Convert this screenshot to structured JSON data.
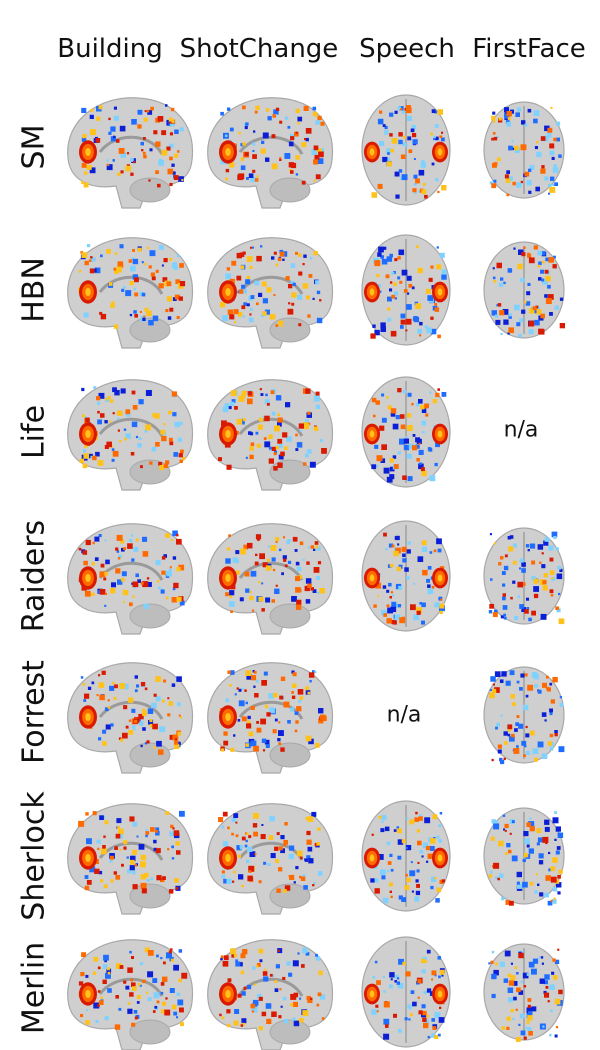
{
  "columns": [
    "Building",
    "ShotChange",
    "Speech",
    "FirstFace"
  ],
  "rows": [
    "SM",
    "HBN",
    "Life",
    "Raiders",
    "Forrest",
    "Sherlock",
    "Merlin"
  ],
  "na_text": "n/a",
  "cells": [
    [
      "map",
      "map",
      "map",
      "map"
    ],
    [
      "map",
      "map",
      "map",
      "map"
    ],
    [
      "map",
      "map",
      "map",
      "n/a"
    ],
    [
      "map",
      "map",
      "map",
      "map"
    ],
    [
      "map",
      "map",
      "n/a",
      "map"
    ],
    [
      "map",
      "map",
      "map",
      "map"
    ],
    [
      "map",
      "map",
      "map",
      "map"
    ]
  ],
  "views": [
    "sagittal",
    "sagittal",
    "axial-top",
    "axial-bottom"
  ],
  "colors": {
    "brain": "#cfcfcf",
    "brain_edge": "#a8a8a8",
    "positive": [
      "#d91a00",
      "#ff6a00",
      "#ffc21a"
    ],
    "negative": [
      "#0a1fd6",
      "#1f6dff",
      "#7fd2ff"
    ]
  }
}
